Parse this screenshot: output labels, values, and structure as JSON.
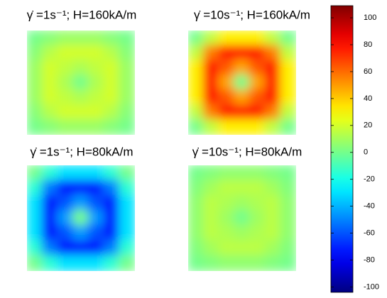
{
  "chart_data": {
    "type": "heatmap",
    "panels": [
      {
        "title": "γ̇ =1s⁻¹; H=160kA/m",
        "values": [
          [
            0,
            4,
            8,
            8,
            8,
            4,
            0
          ],
          [
            4,
            14,
            20,
            20,
            20,
            14,
            4
          ],
          [
            8,
            20,
            16,
            12,
            16,
            20,
            8
          ],
          [
            8,
            20,
            12,
            0,
            12,
            20,
            8
          ],
          [
            8,
            20,
            16,
            12,
            16,
            20,
            8
          ],
          [
            4,
            14,
            20,
            20,
            20,
            14,
            4
          ],
          [
            0,
            4,
            8,
            8,
            8,
            4,
            0
          ]
        ]
      },
      {
        "title": "γ̇ =10s⁻¹; H=160kA/m",
        "values": [
          [
            0,
            16,
            32,
            32,
            32,
            16,
            0
          ],
          [
            16,
            56,
            80,
            80,
            80,
            56,
            16
          ],
          [
            32,
            80,
            64,
            48,
            64,
            80,
            32
          ],
          [
            32,
            80,
            48,
            0,
            48,
            80,
            32
          ],
          [
            32,
            80,
            64,
            48,
            64,
            80,
            32
          ],
          [
            16,
            56,
            80,
            80,
            80,
            56,
            16
          ],
          [
            0,
            16,
            32,
            32,
            32,
            16,
            0
          ]
        ]
      },
      {
        "title": "γ̇ =1s⁻¹; H=80kA/m",
        "values": [
          [
            0,
            -15,
            -30,
            -30,
            -30,
            -15,
            0
          ],
          [
            -15,
            -52,
            -75,
            -75,
            -75,
            -52,
            -15
          ],
          [
            -30,
            -75,
            -60,
            -45,
            -60,
            -75,
            -30
          ],
          [
            -30,
            -75,
            -45,
            0,
            -45,
            -75,
            -30
          ],
          [
            -30,
            -75,
            -60,
            -45,
            -60,
            -75,
            -30
          ],
          [
            -15,
            -52,
            -75,
            -75,
            -75,
            -52,
            -15
          ],
          [
            0,
            -15,
            -30,
            -30,
            -30,
            -15,
            0
          ]
        ]
      },
      {
        "title": "γ̇ =10s⁻¹; H=80kA/m",
        "values": [
          [
            0,
            3,
            6,
            6,
            6,
            3,
            0
          ],
          [
            3,
            10,
            15,
            15,
            15,
            10,
            3
          ],
          [
            6,
            15,
            12,
            9,
            12,
            15,
            6
          ],
          [
            6,
            15,
            9,
            0,
            9,
            15,
            6
          ],
          [
            6,
            15,
            12,
            9,
            12,
            15,
            6
          ],
          [
            3,
            10,
            15,
            15,
            15,
            10,
            3
          ],
          [
            0,
            3,
            6,
            6,
            6,
            3,
            0
          ]
        ]
      }
    ],
    "colormap": "jet",
    "zlim": [
      -104,
      109
    ],
    "zticks": [
      -100,
      -80,
      -60,
      -40,
      -20,
      0,
      20,
      40,
      60,
      80,
      100
    ]
  }
}
